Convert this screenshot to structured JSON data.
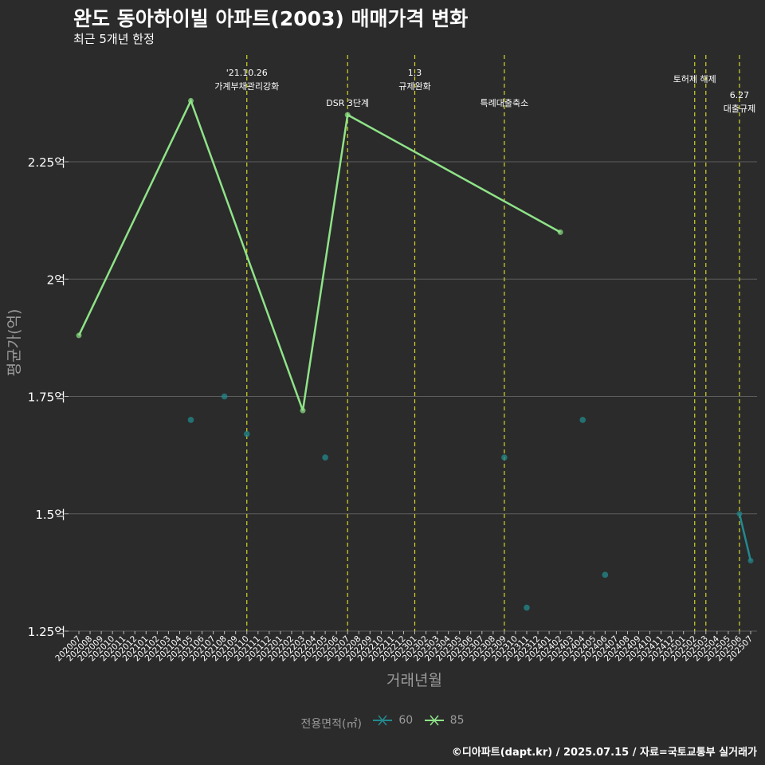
{
  "title": "완도 동아하이빌 아파트(2003) 매매가격 변화",
  "subtitle": "최근 5개년 한정",
  "caption": "©디아파트(dapt.kr) / 2025.07.15 / 자료=국토교통부 실거래가",
  "colors": {
    "s60": "#23898e",
    "s85": "#8fe388",
    "vline": "#d4d42a",
    "grid": "#5e5e5e",
    "bg": "#2b2b2b"
  },
  "legend": {
    "title": "전용면적(㎡)",
    "items": [
      {
        "label": "60",
        "color": "#23898e"
      },
      {
        "label": "85",
        "color": "#8fe388"
      }
    ]
  },
  "chart_data": {
    "type": "line",
    "xlabel": "거래년월",
    "ylabel": "평균가(억)",
    "ylim": [
      1.25,
      2.5
    ],
    "yticks": [
      {
        "v": 1.25,
        "label": "1.25억"
      },
      {
        "v": 1.5,
        "label": "1.5억"
      },
      {
        "v": 1.75,
        "label": "1.75억"
      },
      {
        "v": 2.0,
        "label": "2억"
      },
      {
        "v": 2.25,
        "label": "2.25억"
      }
    ],
    "categories": [
      "202007",
      "202008",
      "202009",
      "202010",
      "202011",
      "202012",
      "202101",
      "202102",
      "202103",
      "202104",
      "202105",
      "202106",
      "202107",
      "202108",
      "202109",
      "202110",
      "202111",
      "202112",
      "202201",
      "202202",
      "202203",
      "202204",
      "202205",
      "202206",
      "202207",
      "202208",
      "202209",
      "202210",
      "202211",
      "202212",
      "202301",
      "202302",
      "202303",
      "202304",
      "202305",
      "202306",
      "202307",
      "202308",
      "202309",
      "202310",
      "202311",
      "202312",
      "202401",
      "202402",
      "202403",
      "202404",
      "202405",
      "202406",
      "202407",
      "202408",
      "202409",
      "202410",
      "202411",
      "202412",
      "202501",
      "202502",
      "202503",
      "202504",
      "202505",
      "202506",
      "202507"
    ],
    "series": [
      {
        "name": "85",
        "points": [
          [
            "202007",
            1.88
          ],
          [
            "202105",
            2.38
          ],
          [
            "202203",
            1.72
          ],
          [
            "202207",
            2.35
          ],
          [
            "202402",
            2.1
          ]
        ]
      },
      {
        "name": "60",
        "line": [
          [
            "202506",
            1.5
          ],
          [
            "202507",
            1.4
          ]
        ],
        "points": [
          [
            "202105",
            1.7
          ],
          [
            "202108",
            1.75
          ],
          [
            "202110",
            1.67
          ],
          [
            "202205",
            1.62
          ],
          [
            "202309",
            1.62
          ],
          [
            "202311",
            1.3
          ],
          [
            "202404",
            1.7
          ],
          [
            "202406",
            1.37
          ]
        ]
      }
    ],
    "events": [
      {
        "x": "202110",
        "lines": [
          "'21.10.26",
          "가계부채관리강화"
        ],
        "level": 1
      },
      {
        "x": "202207",
        "lines": [
          "DSR 3단계"
        ],
        "level": 2
      },
      {
        "x": "202301",
        "lines": [
          "1.3",
          "규제완화"
        ],
        "level": 1
      },
      {
        "x": "202309",
        "lines": [
          "특례대출축소"
        ],
        "level": 2
      },
      {
        "x": "202502",
        "lines": [
          "토허제 해제"
        ],
        "level": 0
      },
      {
        "x": "202503",
        "lines": [],
        "level": 0
      },
      {
        "x": "202506",
        "lines": [
          "6.27",
          "대출규제"
        ],
        "level": 3
      }
    ]
  }
}
